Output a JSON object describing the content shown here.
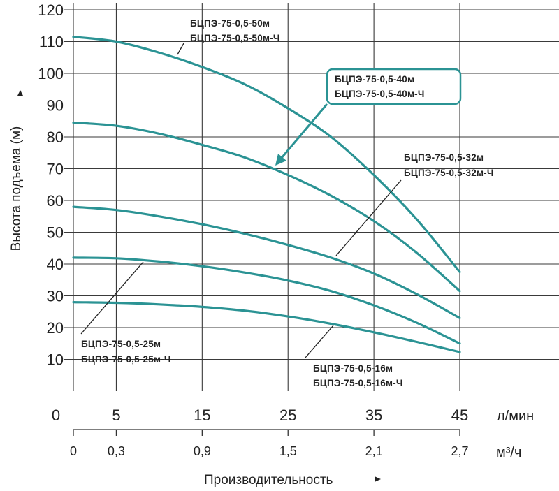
{
  "chart_data": {
    "type": "line",
    "title": "",
    "ylabel": "Высота подъема (м)",
    "xlabel": "Производительность",
    "ylim": [
      0,
      120
    ],
    "xlim": [
      0,
      45
    ],
    "grid": true,
    "y_ticks": [
      {
        "value": 120,
        "label": "120"
      },
      {
        "value": 110,
        "label": "110"
      },
      {
        "value": 100,
        "label": "100"
      },
      {
        "value": 90,
        "label": "90"
      },
      {
        "value": 80,
        "label": "80"
      },
      {
        "value": 70,
        "label": "70"
      },
      {
        "value": 60,
        "label": "60"
      },
      {
        "value": 50,
        "label": "50"
      },
      {
        "value": 40,
        "label": "40"
      },
      {
        "value": 30,
        "label": "30"
      },
      {
        "value": 20,
        "label": "20"
      },
      {
        "value": 10,
        "label": "10"
      }
    ],
    "x_ticks_lmin": [
      {
        "value": 0,
        "label": "0"
      },
      {
        "value": 5,
        "label": "5"
      },
      {
        "value": 15,
        "label": "15"
      },
      {
        "value": 25,
        "label": "25"
      },
      {
        "value": 35,
        "label": "35"
      },
      {
        "value": 45,
        "label": "45"
      }
    ],
    "x_unit_lmin": "л/мин",
    "x_ticks_m3h": [
      {
        "value": 0,
        "label": "0"
      },
      {
        "value": 5,
        "label": "0,3"
      },
      {
        "value": 15,
        "label": "0,9"
      },
      {
        "value": 25,
        "label": "1,5"
      },
      {
        "value": 35,
        "label": "2,1"
      },
      {
        "value": 45,
        "label": "2,7"
      }
    ],
    "x_unit_m3h": "м³/ч",
    "series": [
      {
        "name": "БЦПЭ-75-0,5-50м / БЦПЭ-75-0,5-50м-Ч",
        "label_lines": [
          "БЦПЭ-75-0,5-50м",
          "БЦПЭ-75-0,5-50м-Ч"
        ],
        "x": [
          0,
          5,
          10,
          15,
          20,
          25,
          30,
          35,
          40,
          45
        ],
        "y": [
          111.5,
          110,
          106.5,
          102,
          96.5,
          89,
          80,
          68,
          54,
          37.5
        ]
      },
      {
        "name": "БЦПЭ-75-0,5-40м / БЦПЭ-75-0,5-40м-Ч",
        "label_lines": [
          "БЦПЭ-75-0,5-40м",
          "БЦПЭ-75-0,5-40м-Ч"
        ],
        "x": [
          0,
          5,
          10,
          15,
          20,
          25,
          30,
          35,
          40,
          45
        ],
        "y": [
          84.5,
          83.5,
          81,
          77.5,
          73.5,
          68,
          61.5,
          53.5,
          43.5,
          31.5
        ]
      },
      {
        "name": "БЦПЭ-75-0,5-32м / БЦПЭ-75-0,5-32м-Ч",
        "label_lines": [
          "БЦПЭ-75-0,5-32м",
          "БЦПЭ-75-0,5-32м-Ч"
        ],
        "x": [
          0,
          5,
          10,
          15,
          20,
          25,
          30,
          35,
          40,
          45
        ],
        "y": [
          58,
          57,
          55,
          52.5,
          49.5,
          46,
          42,
          37,
          30.5,
          23
        ]
      },
      {
        "name": "БЦПЭ-75-0,5-25м / БЦПЭ-75-0,5-25м-Ч",
        "label_lines": [
          "БЦПЭ-75-0,5-25м",
          "БЦПЭ-75-0,5-25м-Ч"
        ],
        "x": [
          0,
          5,
          10,
          15,
          20,
          25,
          30,
          35,
          40,
          45
        ],
        "y": [
          42,
          41.8,
          40.8,
          39.3,
          37.3,
          34.8,
          31.5,
          27,
          21.5,
          15
        ]
      },
      {
        "name": "БЦПЭ-75-0,5-16м / БЦПЭ-75-0,5-16м-Ч",
        "label_lines": [
          "БЦПЭ-75-0,5-16м",
          "БЦПЭ-75-0,5-16м-Ч"
        ],
        "x": [
          0,
          5,
          10,
          15,
          20,
          25,
          30,
          35,
          40,
          45
        ],
        "y": [
          28,
          27.8,
          27.3,
          26.5,
          25.3,
          23.5,
          21.2,
          18.5,
          15.5,
          12.3
        ]
      }
    ],
    "line_color": "#2b9394",
    "grid_color": "#3a3a3a"
  }
}
